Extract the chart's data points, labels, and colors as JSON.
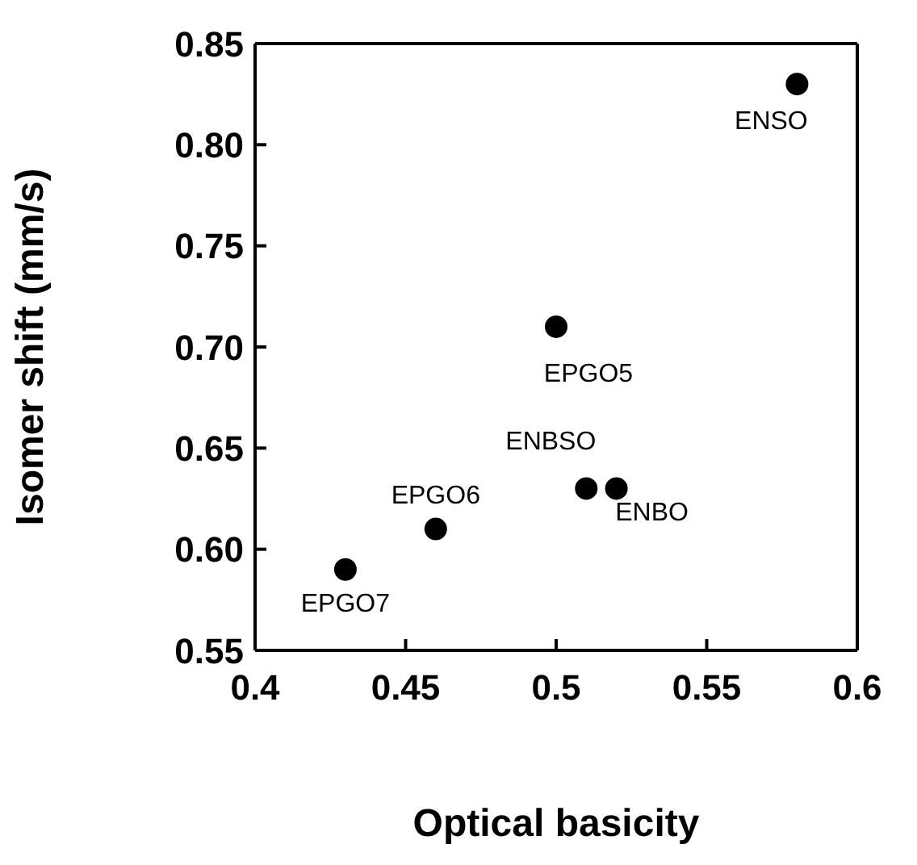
{
  "chart_data": {
    "type": "scatter",
    "xlabel": "Optical basicity",
    "ylabel": "Isomer shift (mm/s)",
    "x": [
      0.43,
      0.46,
      0.5,
      0.51,
      0.52,
      0.58
    ],
    "series": [
      {
        "color": "#000000",
        "values": [
          0.59,
          0.61,
          0.71,
          0.63,
          0.63,
          0.83
        ]
      }
    ],
    "marker": "circle",
    "xlim": [
      0.4,
      0.6
    ],
    "xticks": [
      0.4,
      0.45,
      0.5,
      0.55,
      0.6
    ],
    "ylim": [
      0.55,
      0.85
    ],
    "yticks": [
      0.55,
      {
        "value": 0.6,
        "label": "0.60"
      },
      0.65,
      {
        "value": 0.7,
        "label": "0.70"
      },
      0.75,
      {
        "value": 0.8,
        "label": "0.80"
      },
      0.85
    ],
    "annotations": [
      {
        "text": "EPGO7",
        "x": 0.43,
        "y": 0.59
      },
      {
        "text": "EPGO6",
        "x": 0.46,
        "y": 0.61
      },
      {
        "text": "EPGO5",
        "x": 0.5,
        "y": 0.71
      },
      {
        "text": "ENBSO",
        "x": 0.51,
        "y": 0.63
      },
      {
        "text": "ENBO",
        "x": 0.52,
        "y": 0.63
      },
      {
        "text": "ENSO",
        "x": 0.58,
        "y": 0.83
      }
    ]
  }
}
